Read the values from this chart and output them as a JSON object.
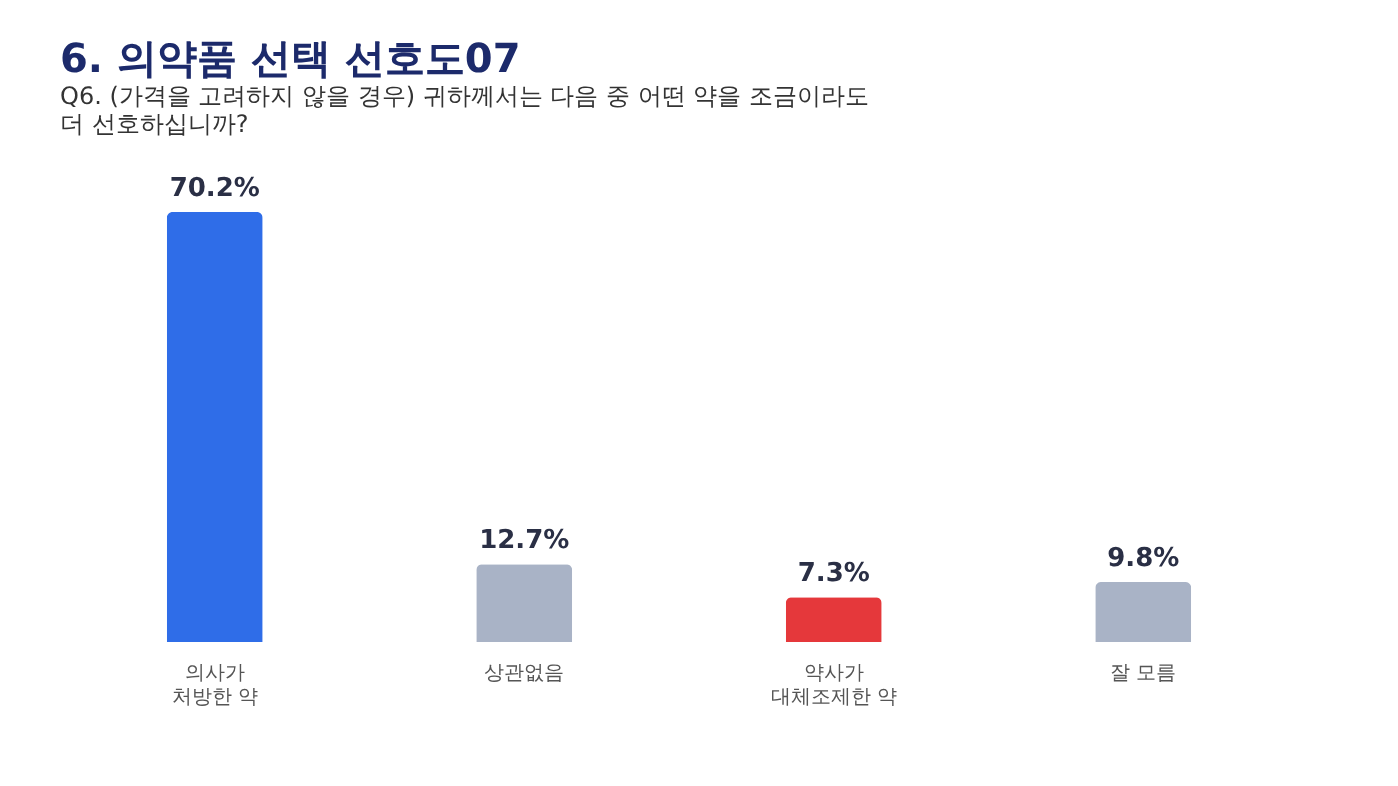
{
  "chart_data": {
    "type": "bar",
    "title": "6. 의약품 선택 선호도07",
    "subtitle": [
      "Q6. (가격을 고려하지 않을 경우) 귀하께서는 다음 중 어떤 약을 조금이라도",
      "더 선호하십니까?"
    ],
    "categories": [
      "의사가\n처방한 약",
      "상관없음",
      "약사가\n대체조제한 약",
      "잘 모름"
    ],
    "values": [
      70.2,
      12.7,
      7.3,
      9.8
    ],
    "colors": [
      "#2f6de8",
      "#a9b3c6",
      "#e5383b",
      "#a9b3c6"
    ],
    "value_labels": [
      "70.2%",
      "12.7%",
      "7.3%",
      "9.8%"
    ],
    "grid": false
  }
}
